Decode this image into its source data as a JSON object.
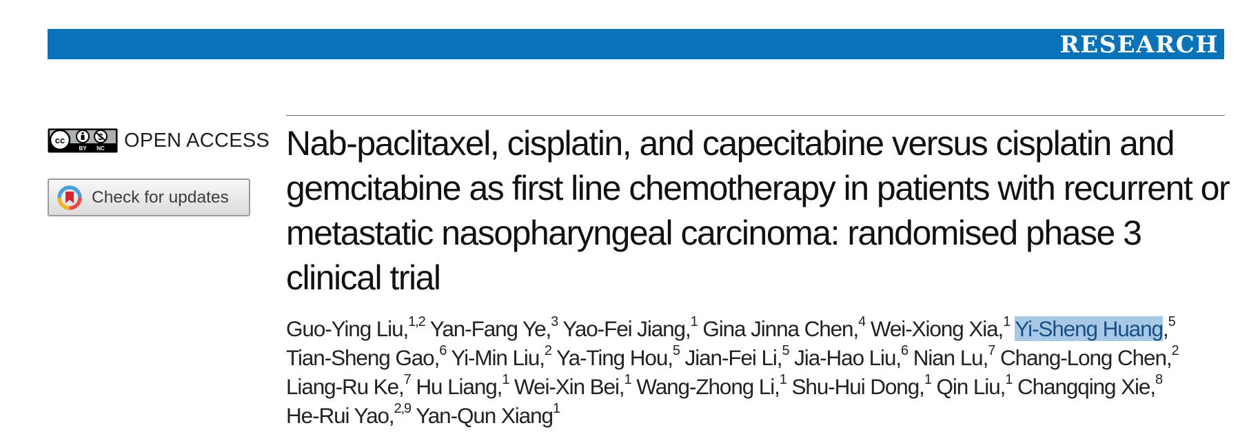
{
  "header": {
    "section_label": "RESEARCH",
    "bar_color": "#0a72b9"
  },
  "license": {
    "badge_text": {
      "cc": "cc",
      "by": "BY",
      "nc": "NC"
    },
    "open_access": "OPEN ACCESS"
  },
  "updates": {
    "label": "Check for updates"
  },
  "article": {
    "title": "Nab-paclitaxel, cisplatin, and capecitabine versus cisplatin and gemcitabine as first line chemotherapy in patients with recurrent or metastatic nasopharyngeal carcinoma: randomised phase 3 clinical trial"
  },
  "authors": [
    {
      "name": "Guo-Ying Liu",
      "sep": ",",
      "aff": "1,2"
    },
    {
      "name": "Yan-Fang Ye",
      "sep": ",",
      "aff": "3"
    },
    {
      "name": "Yao-Fei Jiang",
      "sep": ",",
      "aff": "1"
    },
    {
      "name": "Gina Jinna Chen",
      "sep": ",",
      "aff": "4"
    },
    {
      "name": "Wei-Xiong Xia",
      "sep": ",",
      "aff": "1"
    },
    {
      "name": "Yi-Sheng Huang",
      "sep": ",",
      "aff": "5",
      "highlighted": true
    },
    {
      "name": "Tian-Sheng Gao",
      "sep": ",",
      "aff": "6"
    },
    {
      "name": "Yi-Min Liu",
      "sep": ",",
      "aff": "2"
    },
    {
      "name": "Ya-Ting Hou",
      "sep": ",",
      "aff": "5"
    },
    {
      "name": "Jian-Fei Li",
      "sep": ",",
      "aff": "5"
    },
    {
      "name": "Jia-Hao Liu",
      "sep": ",",
      "aff": "6"
    },
    {
      "name": "Nian Lu",
      "sep": ",",
      "aff": "7"
    },
    {
      "name": "Chang-Long Chen",
      "sep": ",",
      "aff": "2"
    },
    {
      "name": "Liang-Ru Ke",
      "sep": ",",
      "aff": "7"
    },
    {
      "name": "Hu Liang",
      "sep": ",",
      "aff": "1"
    },
    {
      "name": "Wei-Xin Bei",
      "sep": ",",
      "aff": "1"
    },
    {
      "name": "Wang-Zhong Li",
      "sep": ",",
      "aff": "1"
    },
    {
      "name": "Shu-Hui Dong",
      "sep": ",",
      "aff": "1"
    },
    {
      "name": "Qin Liu",
      "sep": ",",
      "aff": "1"
    },
    {
      "name": "Changqing Xie",
      "sep": ",",
      "aff": "8"
    },
    {
      "name": "He-Rui Yao",
      "sep": ",",
      "aff": "2,9"
    },
    {
      "name": "Yan-Qun Xiang",
      "sep": "",
      "aff": "1"
    }
  ],
  "author_lines": [
    [
      0,
      1,
      2,
      3,
      4,
      5
    ],
    [
      6,
      7,
      8,
      9,
      10,
      11,
      12
    ],
    [
      13,
      14,
      15,
      16,
      17,
      18,
      19
    ],
    [
      20,
      21
    ]
  ]
}
